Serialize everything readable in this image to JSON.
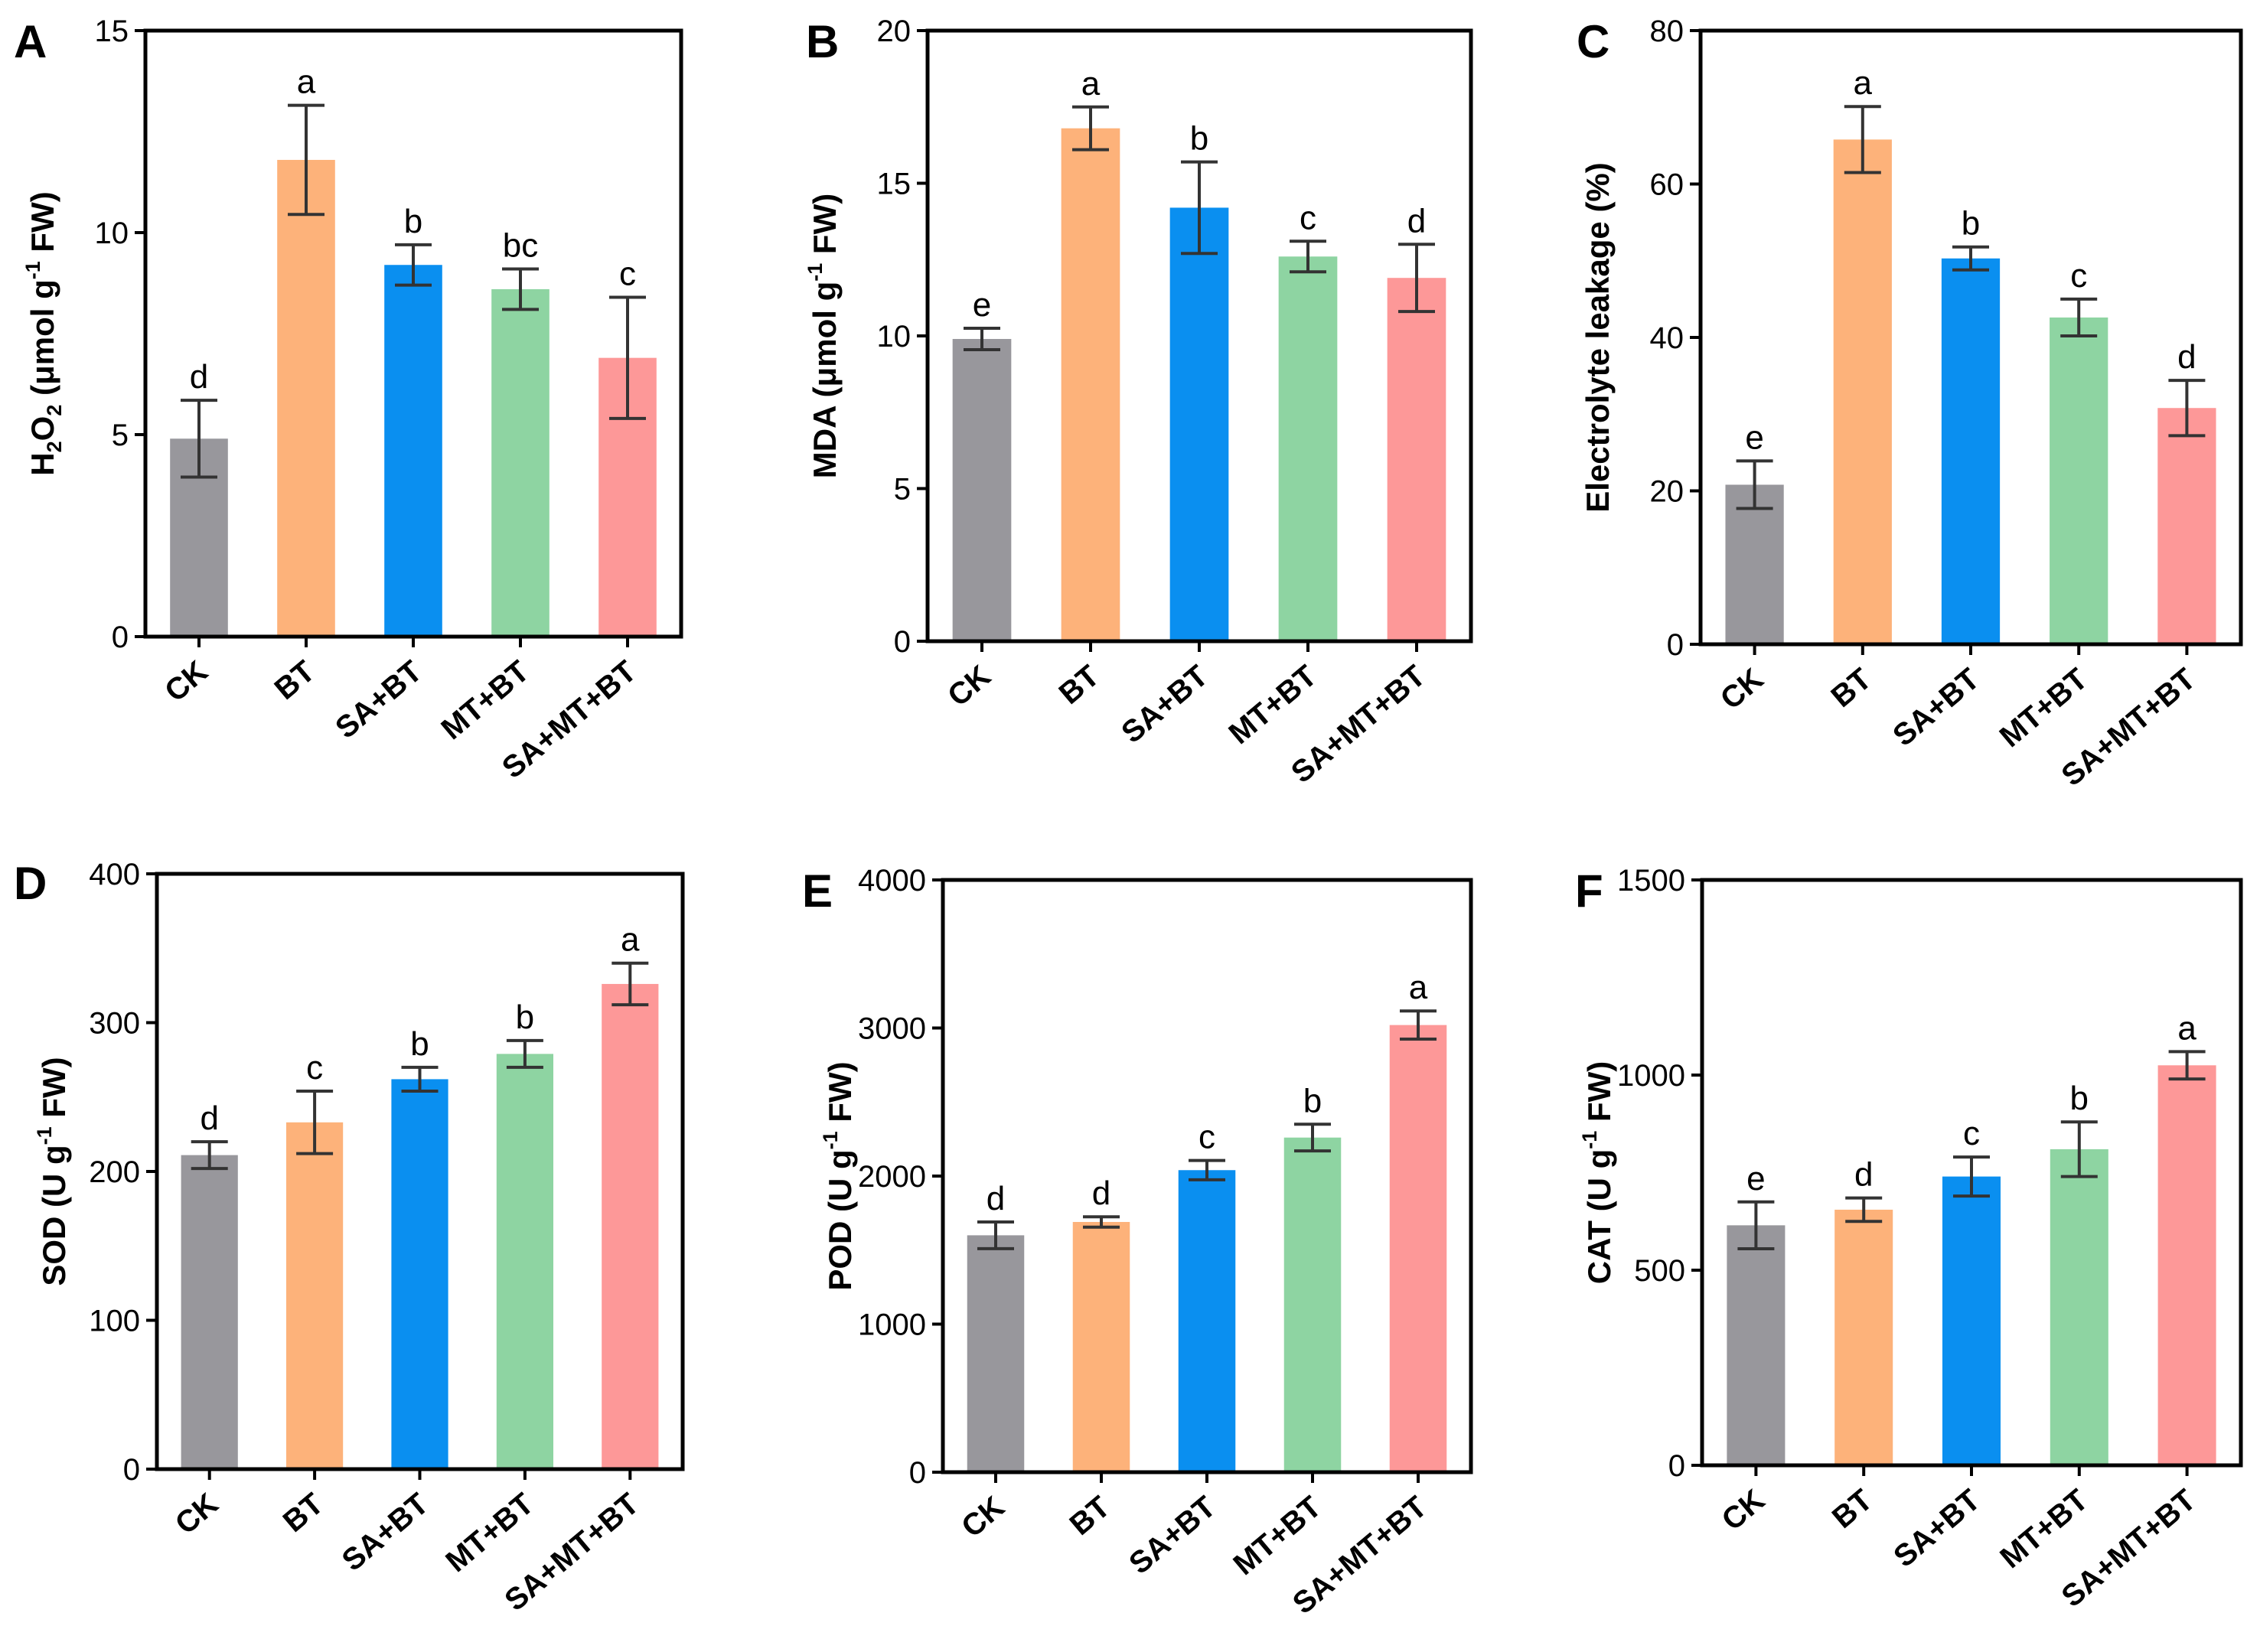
{
  "figure": {
    "colors": {
      "CK": "#98979c",
      "BT": "#fdb27a",
      "SA+BT": "#0a8ff0",
      "MT+BT": "#8ed4a2",
      "SA+MT+BT": "#fd9898"
    }
  },
  "chart_data": [
    {
      "panel": "A",
      "type": "bar",
      "categories": [
        "CK",
        "BT",
        "SA+BT",
        "MT+BT",
        "SA+MT+BT"
      ],
      "values": [
        4.9,
        11.8,
        9.2,
        8.6,
        6.9
      ],
      "errors": [
        0.95,
        1.35,
        0.5,
        0.5,
        1.5
      ],
      "significance": [
        "d",
        "a",
        "b",
        "bc",
        "c"
      ],
      "ylabel_parts": [
        "H",
        "2",
        "O",
        "2",
        " (μmol g",
        "-1",
        " FW)"
      ],
      "ylim": [
        0,
        15
      ],
      "yticks": [
        0,
        5,
        10,
        15
      ]
    },
    {
      "panel": "B",
      "type": "bar",
      "categories": [
        "CK",
        "BT",
        "SA+BT",
        "MT+BT",
        "SA+MT+BT"
      ],
      "values": [
        9.9,
        16.8,
        14.2,
        12.6,
        11.9
      ],
      "errors": [
        0.35,
        0.7,
        1.5,
        0.5,
        1.1
      ],
      "significance": [
        "e",
        "a",
        "b",
        "c",
        "d"
      ],
      "ylabel_parts": [
        "MDA  (μmol g",
        "-1",
        " FW)"
      ],
      "ylim": [
        0,
        20
      ],
      "yticks": [
        0,
        5,
        10,
        15,
        20
      ]
    },
    {
      "panel": "C",
      "type": "bar",
      "categories": [
        "CK",
        "BT",
        "SA+BT",
        "MT+BT",
        "SA+MT+BT"
      ],
      "values": [
        20.8,
        65.8,
        50.3,
        42.6,
        30.8
      ],
      "errors": [
        3.1,
        4.3,
        1.5,
        2.4,
        3.6
      ],
      "significance": [
        "e",
        "a",
        "b",
        "c",
        "d"
      ],
      "ylabel_parts": [
        "Electrolyte leakage (%)"
      ],
      "ylim": [
        0,
        80
      ],
      "yticks": [
        0,
        20,
        40,
        60,
        80
      ]
    },
    {
      "panel": "D",
      "type": "bar",
      "categories": [
        "CK",
        "BT",
        "SA+BT",
        "MT+BT",
        "SA+MT+BT"
      ],
      "values": [
        211,
        233,
        262,
        279,
        326
      ],
      "errors": [
        9,
        21,
        8,
        9,
        14
      ],
      "significance": [
        "d",
        "c",
        "b",
        "b",
        "a"
      ],
      "ylabel_parts": [
        "SOD (U g",
        "-1",
        " FW)"
      ],
      "ylim": [
        0,
        400
      ],
      "yticks": [
        0,
        100,
        200,
        300,
        400
      ]
    },
    {
      "panel": "E",
      "type": "bar",
      "categories": [
        "CK",
        "BT",
        "SA+BT",
        "MT+BT",
        "SA+MT+BT"
      ],
      "values": [
        1600,
        1690,
        2040,
        2260,
        3020
      ],
      "errors": [
        90,
        35,
        65,
        90,
        95
      ],
      "significance": [
        "d",
        "d",
        "c",
        "b",
        "a"
      ],
      "ylabel_parts": [
        "POD (U g",
        "-1",
        " FW)"
      ],
      "ylim": [
        0,
        4000
      ],
      "yticks": [
        0,
        1000,
        2000,
        3000,
        4000
      ]
    },
    {
      "panel": "F",
      "type": "bar",
      "categories": [
        "CK",
        "BT",
        "SA+BT",
        "MT+BT",
        "SA+MT+BT"
      ],
      "values": [
        615,
        655,
        740,
        810,
        1025
      ],
      "errors": [
        60,
        30,
        50,
        70,
        35
      ],
      "significance": [
        "e",
        "d",
        "c",
        "b",
        "a"
      ],
      "ylabel_parts": [
        "CAT (U g",
        "-1",
        " FW)"
      ],
      "ylim": [
        0,
        1500
      ],
      "yticks": [
        0,
        500,
        1000,
        1500
      ]
    }
  ]
}
